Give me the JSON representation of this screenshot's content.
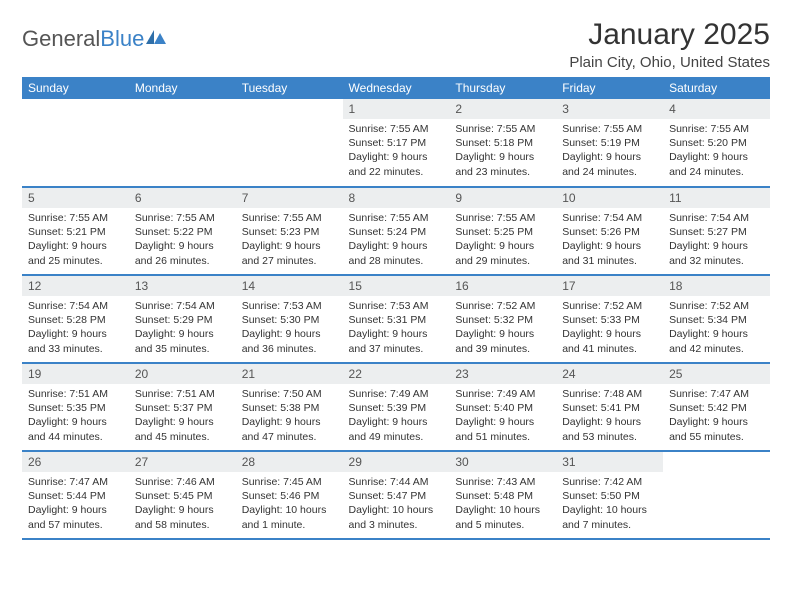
{
  "brand": {
    "part1": "General",
    "part2": "Blue"
  },
  "title": "January 2025",
  "location": "Plain City, Ohio, United States",
  "colors": {
    "accent": "#3b82c7",
    "header_text": "#ffffff",
    "daynum_bg": "#eceeef"
  },
  "day_headers": [
    "Sunday",
    "Monday",
    "Tuesday",
    "Wednesday",
    "Thursday",
    "Friday",
    "Saturday"
  ],
  "weeks": [
    [
      null,
      null,
      null,
      {
        "n": "1",
        "sr": "Sunrise: 7:55 AM",
        "ss": "Sunset: 5:17 PM",
        "d1": "Daylight: 9 hours",
        "d2": "and 22 minutes."
      },
      {
        "n": "2",
        "sr": "Sunrise: 7:55 AM",
        "ss": "Sunset: 5:18 PM",
        "d1": "Daylight: 9 hours",
        "d2": "and 23 minutes."
      },
      {
        "n": "3",
        "sr": "Sunrise: 7:55 AM",
        "ss": "Sunset: 5:19 PM",
        "d1": "Daylight: 9 hours",
        "d2": "and 24 minutes."
      },
      {
        "n": "4",
        "sr": "Sunrise: 7:55 AM",
        "ss": "Sunset: 5:20 PM",
        "d1": "Daylight: 9 hours",
        "d2": "and 24 minutes."
      }
    ],
    [
      {
        "n": "5",
        "sr": "Sunrise: 7:55 AM",
        "ss": "Sunset: 5:21 PM",
        "d1": "Daylight: 9 hours",
        "d2": "and 25 minutes."
      },
      {
        "n": "6",
        "sr": "Sunrise: 7:55 AM",
        "ss": "Sunset: 5:22 PM",
        "d1": "Daylight: 9 hours",
        "d2": "and 26 minutes."
      },
      {
        "n": "7",
        "sr": "Sunrise: 7:55 AM",
        "ss": "Sunset: 5:23 PM",
        "d1": "Daylight: 9 hours",
        "d2": "and 27 minutes."
      },
      {
        "n": "8",
        "sr": "Sunrise: 7:55 AM",
        "ss": "Sunset: 5:24 PM",
        "d1": "Daylight: 9 hours",
        "d2": "and 28 minutes."
      },
      {
        "n": "9",
        "sr": "Sunrise: 7:55 AM",
        "ss": "Sunset: 5:25 PM",
        "d1": "Daylight: 9 hours",
        "d2": "and 29 minutes."
      },
      {
        "n": "10",
        "sr": "Sunrise: 7:54 AM",
        "ss": "Sunset: 5:26 PM",
        "d1": "Daylight: 9 hours",
        "d2": "and 31 minutes."
      },
      {
        "n": "11",
        "sr": "Sunrise: 7:54 AM",
        "ss": "Sunset: 5:27 PM",
        "d1": "Daylight: 9 hours",
        "d2": "and 32 minutes."
      }
    ],
    [
      {
        "n": "12",
        "sr": "Sunrise: 7:54 AM",
        "ss": "Sunset: 5:28 PM",
        "d1": "Daylight: 9 hours",
        "d2": "and 33 minutes."
      },
      {
        "n": "13",
        "sr": "Sunrise: 7:54 AM",
        "ss": "Sunset: 5:29 PM",
        "d1": "Daylight: 9 hours",
        "d2": "and 35 minutes."
      },
      {
        "n": "14",
        "sr": "Sunrise: 7:53 AM",
        "ss": "Sunset: 5:30 PM",
        "d1": "Daylight: 9 hours",
        "d2": "and 36 minutes."
      },
      {
        "n": "15",
        "sr": "Sunrise: 7:53 AM",
        "ss": "Sunset: 5:31 PM",
        "d1": "Daylight: 9 hours",
        "d2": "and 37 minutes."
      },
      {
        "n": "16",
        "sr": "Sunrise: 7:52 AM",
        "ss": "Sunset: 5:32 PM",
        "d1": "Daylight: 9 hours",
        "d2": "and 39 minutes."
      },
      {
        "n": "17",
        "sr": "Sunrise: 7:52 AM",
        "ss": "Sunset: 5:33 PM",
        "d1": "Daylight: 9 hours",
        "d2": "and 41 minutes."
      },
      {
        "n": "18",
        "sr": "Sunrise: 7:52 AM",
        "ss": "Sunset: 5:34 PM",
        "d1": "Daylight: 9 hours",
        "d2": "and 42 minutes."
      }
    ],
    [
      {
        "n": "19",
        "sr": "Sunrise: 7:51 AM",
        "ss": "Sunset: 5:35 PM",
        "d1": "Daylight: 9 hours",
        "d2": "and 44 minutes."
      },
      {
        "n": "20",
        "sr": "Sunrise: 7:51 AM",
        "ss": "Sunset: 5:37 PM",
        "d1": "Daylight: 9 hours",
        "d2": "and 45 minutes."
      },
      {
        "n": "21",
        "sr": "Sunrise: 7:50 AM",
        "ss": "Sunset: 5:38 PM",
        "d1": "Daylight: 9 hours",
        "d2": "and 47 minutes."
      },
      {
        "n": "22",
        "sr": "Sunrise: 7:49 AM",
        "ss": "Sunset: 5:39 PM",
        "d1": "Daylight: 9 hours",
        "d2": "and 49 minutes."
      },
      {
        "n": "23",
        "sr": "Sunrise: 7:49 AM",
        "ss": "Sunset: 5:40 PM",
        "d1": "Daylight: 9 hours",
        "d2": "and 51 minutes."
      },
      {
        "n": "24",
        "sr": "Sunrise: 7:48 AM",
        "ss": "Sunset: 5:41 PM",
        "d1": "Daylight: 9 hours",
        "d2": "and 53 minutes."
      },
      {
        "n": "25",
        "sr": "Sunrise: 7:47 AM",
        "ss": "Sunset: 5:42 PM",
        "d1": "Daylight: 9 hours",
        "d2": "and 55 minutes."
      }
    ],
    [
      {
        "n": "26",
        "sr": "Sunrise: 7:47 AM",
        "ss": "Sunset: 5:44 PM",
        "d1": "Daylight: 9 hours",
        "d2": "and 57 minutes."
      },
      {
        "n": "27",
        "sr": "Sunrise: 7:46 AM",
        "ss": "Sunset: 5:45 PM",
        "d1": "Daylight: 9 hours",
        "d2": "and 58 minutes."
      },
      {
        "n": "28",
        "sr": "Sunrise: 7:45 AM",
        "ss": "Sunset: 5:46 PM",
        "d1": "Daylight: 10 hours",
        "d2": "and 1 minute."
      },
      {
        "n": "29",
        "sr": "Sunrise: 7:44 AM",
        "ss": "Sunset: 5:47 PM",
        "d1": "Daylight: 10 hours",
        "d2": "and 3 minutes."
      },
      {
        "n": "30",
        "sr": "Sunrise: 7:43 AM",
        "ss": "Sunset: 5:48 PM",
        "d1": "Daylight: 10 hours",
        "d2": "and 5 minutes."
      },
      {
        "n": "31",
        "sr": "Sunrise: 7:42 AM",
        "ss": "Sunset: 5:50 PM",
        "d1": "Daylight: 10 hours",
        "d2": "and 7 minutes."
      },
      null
    ]
  ]
}
